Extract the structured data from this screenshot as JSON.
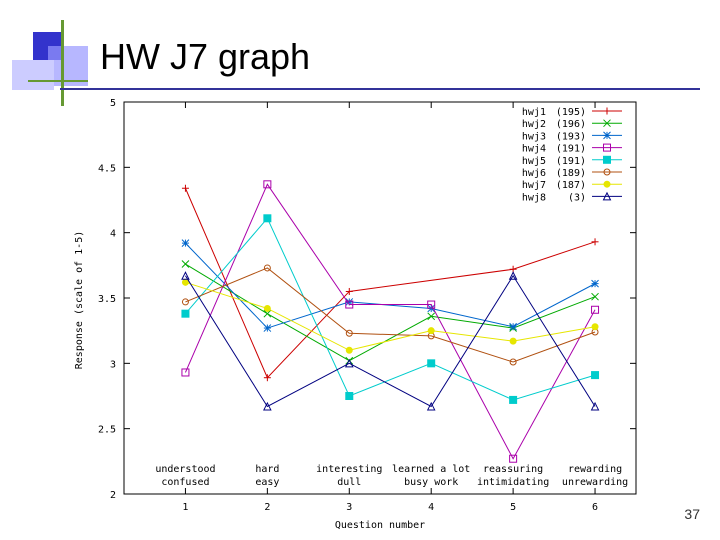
{
  "slide": {
    "title": "HW J7 graph",
    "page_number": "37"
  },
  "colors": {
    "deco_dark": "#3333cc",
    "deco_mid": "#6666ff",
    "deco_light": "#ccccff",
    "deco_green": "#669933",
    "rule": "#333399"
  },
  "chart_data": {
    "type": "line",
    "title": "",
    "xlabel": "Question number",
    "ylabel": "Response (scale of 1-5)",
    "x": [
      1,
      2,
      3,
      4,
      5,
      6
    ],
    "xlim": [
      0.25,
      6.5
    ],
    "ylim": [
      2,
      5
    ],
    "yticks": [
      2,
      2.5,
      3,
      3.5,
      4,
      4.5,
      5
    ],
    "grid": false,
    "legend_position": "top-right",
    "question_labels": [
      {
        "top": "understood",
        "bottom": "confused"
      },
      {
        "top": "hard",
        "bottom": "easy"
      },
      {
        "top": "interesting",
        "bottom": "dull"
      },
      {
        "top": "learned a lot",
        "bottom": "busy work"
      },
      {
        "top": "reassuring",
        "bottom": "intimidating"
      },
      {
        "top": "rewarding",
        "bottom": "unrewarding"
      }
    ],
    "series": [
      {
        "name": "hwj1",
        "count": "(195)",
        "color": "#cc0000",
        "marker": "plus",
        "values": [
          4.34,
          2.89,
          3.55,
          null,
          3.72,
          3.93
        ]
      },
      {
        "name": "hwj2",
        "count": "(196)",
        "color": "#00aa00",
        "marker": "cross",
        "values": [
          3.76,
          3.38,
          3.02,
          3.36,
          3.27,
          3.51
        ]
      },
      {
        "name": "hwj3",
        "count": "(193)",
        "color": "#0066cc",
        "marker": "star",
        "values": [
          3.92,
          3.27,
          3.47,
          3.42,
          3.28,
          3.61
        ]
      },
      {
        "name": "hwj4",
        "count": "(191)",
        "color": "#aa00aa",
        "marker": "square",
        "values": [
          2.93,
          4.37,
          3.45,
          3.45,
          2.27,
          3.41
        ]
      },
      {
        "name": "hwj5",
        "count": "(191)",
        "color": "#00cccc",
        "marker": "filled-square",
        "values": [
          3.38,
          4.11,
          2.75,
          3.0,
          2.72,
          2.91
        ]
      },
      {
        "name": "hwj6",
        "count": "(189)",
        "color": "#b05010",
        "marker": "circle",
        "values": [
          3.47,
          3.73,
          3.23,
          3.21,
          3.01,
          3.24
        ]
      },
      {
        "name": "hwj7",
        "count": "(187)",
        "color": "#e6e600",
        "marker": "filled-circle",
        "values": [
          3.62,
          3.42,
          3.1,
          3.25,
          3.17,
          3.28
        ]
      },
      {
        "name": "hwj8",
        "count": "(3)",
        "color": "#000080",
        "marker": "triangle",
        "values": [
          3.67,
          2.67,
          3.0,
          2.67,
          3.67,
          2.67
        ]
      }
    ]
  }
}
